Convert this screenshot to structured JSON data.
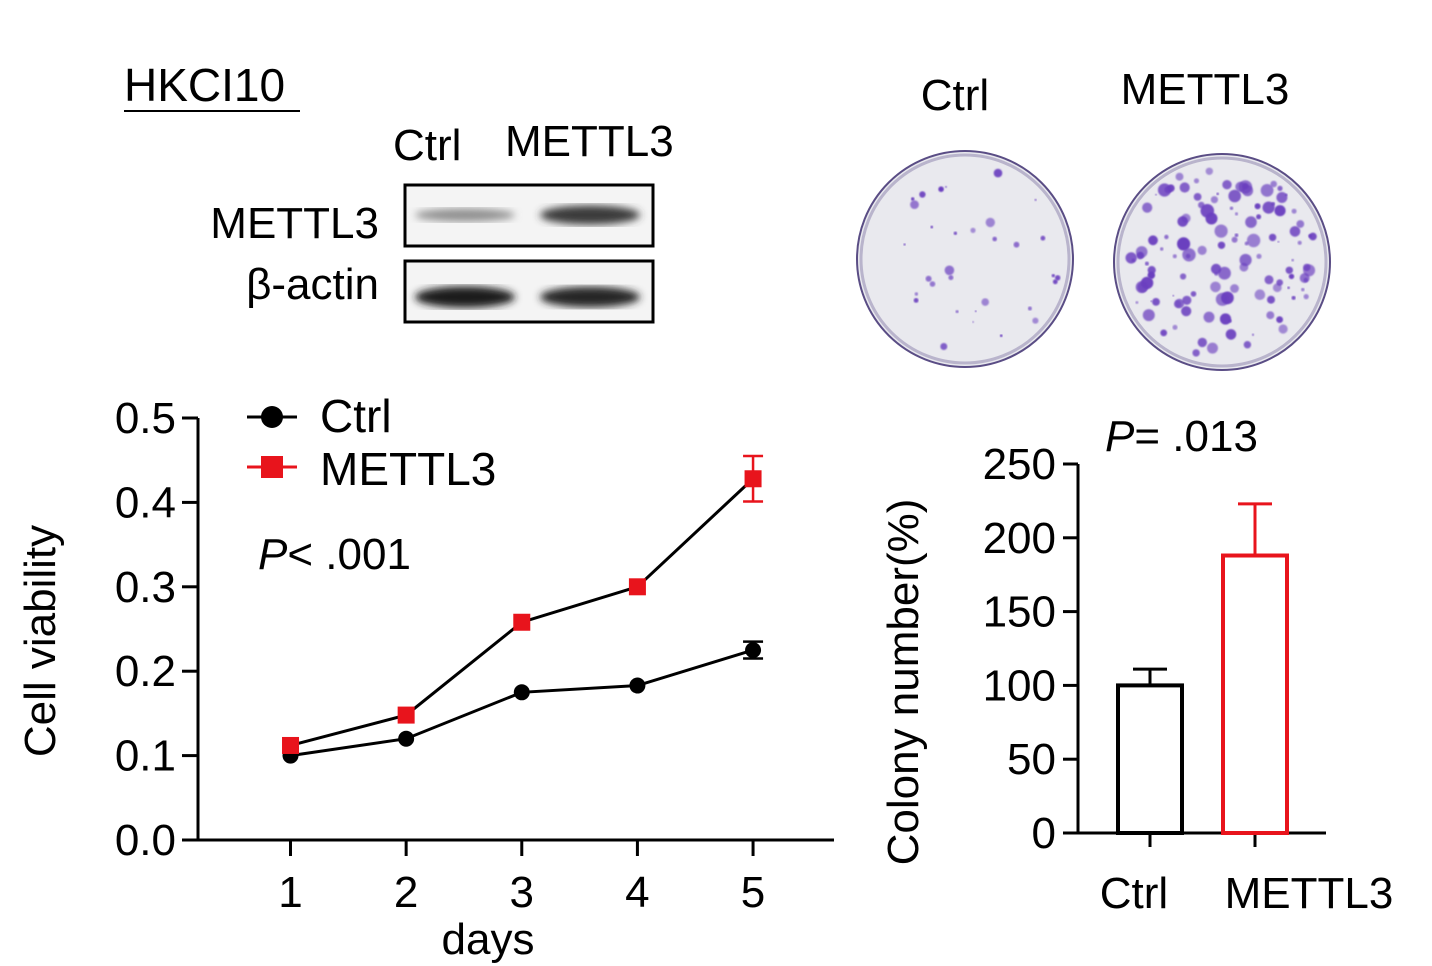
{
  "panel_title": "HKCI10",
  "western_blot": {
    "lane_labels": [
      "Ctrl",
      "METTL3"
    ],
    "row_labels": [
      "METTL3",
      "β-actin"
    ],
    "band_intensity": {
      "METTL3": [
        0.35,
        0.8
      ],
      "β-actin": [
        0.95,
        0.9
      ]
    }
  },
  "colony_plates": {
    "labels": [
      "Ctrl",
      "METTL3"
    ],
    "colony_colour": "#6a3fbf"
  },
  "chart_data": [
    {
      "type": "line",
      "xlabel": "days",
      "ylabel": "Cell viability",
      "x": [
        1,
        2,
        3,
        4,
        5
      ],
      "xlim": [
        0.2,
        5.7
      ],
      "ylim": [
        0.0,
        0.5
      ],
      "yticks": [
        "0.0",
        "0.1",
        "0.2",
        "0.3",
        "0.4",
        "0.5"
      ],
      "xticks": [
        "1",
        "2",
        "3",
        "4",
        "5"
      ],
      "annotation": "< .001",
      "annotation_prefix": "P",
      "legend_placement": "top-left",
      "series": [
        {
          "name": "Ctrl",
          "marker": "circle",
          "color": "#000000",
          "values": [
            0.1,
            0.12,
            0.175,
            0.183,
            0.225
          ],
          "errors": [
            0,
            0,
            0,
            0,
            0.01
          ]
        },
        {
          "name": "METTL3",
          "marker": "square",
          "color": "#e8141c",
          "values": [
            0.112,
            0.148,
            0.258,
            0.3,
            0.428
          ],
          "errors": [
            0,
            0,
            0,
            0,
            0.027
          ]
        }
      ]
    },
    {
      "type": "bar",
      "ylabel": "Colony number(%)",
      "categories": [
        "Ctrl",
        "METTL3"
      ],
      "values": [
        100,
        188
      ],
      "errors": [
        11,
        35
      ],
      "colors": [
        "#000000",
        "#e8141c"
      ],
      "ylim": [
        0,
        250
      ],
      "yticks": [
        "0",
        "50",
        "100",
        "150",
        "200",
        "250"
      ],
      "annotation": "= .013",
      "annotation_prefix": "P"
    }
  ]
}
